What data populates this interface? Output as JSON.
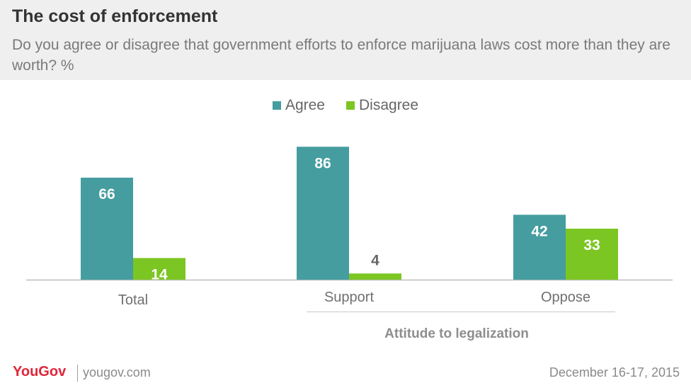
{
  "header": {
    "title": "The cost of enforcement",
    "subtitle": "Do you agree or disagree that government efforts to enforce marijuana laws cost more than they are worth? %"
  },
  "legend": [
    {
      "label": "Agree",
      "color": "#459d9f"
    },
    {
      "label": "Disagree",
      "color": "#7cc623"
    }
  ],
  "chart_data": {
    "type": "bar",
    "categories": [
      "Total",
      "Support",
      "Oppose"
    ],
    "group_label": "Attitude to legalization",
    "series": [
      {
        "name": "Agree",
        "values": [
          66,
          86,
          42
        ],
        "color": "#459d9f"
      },
      {
        "name": "Disagree",
        "values": [
          14,
          4,
          33
        ],
        "color": "#7cc623"
      }
    ],
    "ylim": [
      0,
      100
    ],
    "legend_position": "top-center",
    "grid": false
  },
  "footer": {
    "brand": "YouGov",
    "site": "yougov.com",
    "date": "December 16-17, 2015"
  }
}
